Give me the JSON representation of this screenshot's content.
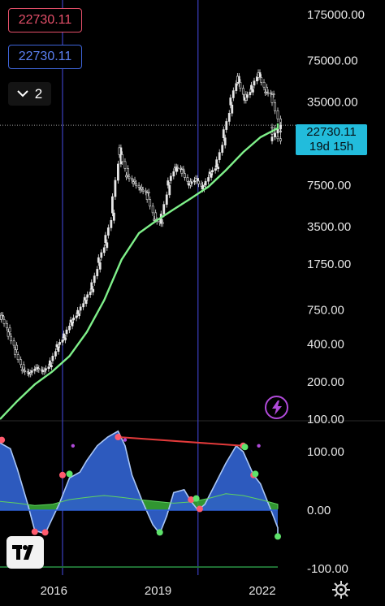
{
  "price_tags": {
    "red_value": "22730.11",
    "blue_value": "22730.11"
  },
  "collapse_button": {
    "count": "2",
    "icon": "chevron-down-icon"
  },
  "last_price": {
    "value": "22730.11",
    "countdown": "19d 15h"
  },
  "icons": {
    "flash": "lightning-icon",
    "logo": "tradingview-logo",
    "settings": "gear-icon"
  },
  "colors": {
    "background": "#000000",
    "candle": "#e6e6e6",
    "moving_average": "#7ff08a",
    "last_price_label": "#22bcdc",
    "osc_fill": "#2f5fc8",
    "osc_line": "#a9c6f6",
    "osc_signal": "#39b039",
    "divergence": "#e23a3a",
    "marker_red": "#ff5b6e",
    "marker_green": "#5ee36b",
    "marker_purple": "#b04ad9",
    "vertical_line": "#3b3fbf"
  },
  "chart_data": [
    {
      "type": "candlestick",
      "y_scale": "log",
      "ylim": [
        100,
        175000
      ],
      "y_ticks": [
        "175000.00",
        "75000.00",
        "35000.00",
        "7500.00",
        "3500.00",
        "1750.00",
        "750.00",
        "400.00",
        "200.00",
        "100.00"
      ],
      "x_ticks": [
        "2016",
        "2019",
        "2022"
      ],
      "xlim": [
        2014.5,
        2023.9
      ],
      "last_price": 22730.11,
      "vertical_lines_x": [
        2016.3,
        2020.2
      ],
      "series": [
        {
          "kind": "price",
          "x": [
            2014.5,
            2014.7,
            2014.9,
            2015.1,
            2015.3,
            2015.5,
            2015.7,
            2015.9,
            2016.1,
            2016.3,
            2016.5,
            2016.7,
            2016.9,
            2017.1,
            2017.3,
            2017.5,
            2017.7,
            2017.9,
            2018.1,
            2018.3,
            2018.5,
            2018.7,
            2018.9,
            2019.1,
            2019.3,
            2019.5,
            2019.7,
            2019.9,
            2020.1,
            2020.3,
            2020.5,
            2020.7,
            2020.9,
            2021.1,
            2021.3,
            2021.5,
            2021.7,
            2021.9,
            2022.1,
            2022.3,
            2022.5,
            2022.7,
            2022.9,
            2023.1
          ],
          "y": [
            680,
            500,
            360,
            250,
            230,
            260,
            240,
            270,
            380,
            450,
            600,
            700,
            900,
            1100,
            1800,
            2600,
            4500,
            15000,
            9000,
            8000,
            7000,
            6500,
            4000,
            3700,
            7500,
            10500,
            10000,
            7500,
            8500,
            7000,
            9300,
            10500,
            18000,
            33000,
            56000,
            36000,
            44000,
            60000,
            42000,
            40000,
            22000,
            20000,
            17000,
            22730
          ]
        },
        {
          "kind": "moving_average",
          "x": [
            2014.5,
            2015.0,
            2015.5,
            2016.0,
            2016.5,
            2017.0,
            2017.5,
            2018.0,
            2018.5,
            2019.0,
            2019.5,
            2020.0,
            2020.5,
            2021.0,
            2021.5,
            2022.0,
            2022.5,
            2023.0,
            2023.2
          ],
          "y": [
            100,
            140,
            190,
            240,
            320,
            500,
            900,
            1900,
            3100,
            3900,
            4800,
            5900,
            7300,
            9900,
            13800,
            18200,
            21500,
            23300,
            23500
          ]
        }
      ]
    },
    {
      "type": "area",
      "ylim": [
        -100,
        150
      ],
      "y_ticks": [
        "100.00",
        "0.00",
        "-100.00"
      ],
      "x_ticks": [
        "2016",
        "2019",
        "2022"
      ],
      "series": [
        {
          "kind": "oscillator",
          "x": [
            2014.5,
            2014.8,
            2015.0,
            2015.3,
            2015.5,
            2015.8,
            2016.0,
            2016.2,
            2016.5,
            2016.8,
            2017.0,
            2017.3,
            2017.6,
            2017.9,
            2018.1,
            2018.3,
            2018.6,
            2018.9,
            2019.1,
            2019.3,
            2019.5,
            2019.8,
            2020.0,
            2020.2,
            2020.4,
            2020.7,
            2021.0,
            2021.3,
            2021.5,
            2021.8,
            2022.0,
            2022.3,
            2022.5,
            2022.8,
            2023.1
          ],
          "y": [
            115,
            105,
            70,
            10,
            -35,
            -40,
            -15,
            10,
            55,
            65,
            85,
            110,
            125,
            135,
            110,
            60,
            15,
            -25,
            -40,
            -10,
            30,
            35,
            15,
            0,
            10,
            45,
            80,
            110,
            100,
            60,
            45,
            0,
            -30,
            -40,
            -45
          ]
        },
        {
          "kind": "signal",
          "x": [
            2014.5,
            2015.0,
            2015.5,
            2016.0,
            2016.5,
            2017.0,
            2017.5,
            2018.0,
            2018.5,
            2019.0,
            2019.5,
            2020.0,
            2020.5,
            2021.0,
            2021.5,
            2022.0,
            2022.5,
            2023.1
          ],
          "y": [
            15,
            12,
            8,
            10,
            18,
            22,
            25,
            22,
            18,
            15,
            12,
            14,
            20,
            28,
            25,
            18,
            10,
            2
          ]
        }
      ],
      "divergence": {
        "x": [
          2017.9,
          2021.5
        ],
        "y": [
          125,
          110
        ]
      },
      "markers": [
        {
          "x": 2014.55,
          "y": 120,
          "color": "red"
        },
        {
          "x": 2015.5,
          "y": -37,
          "color": "red"
        },
        {
          "x": 2015.8,
          "y": -38,
          "color": "red"
        },
        {
          "x": 2016.3,
          "y": 60,
          "color": "red"
        },
        {
          "x": 2016.5,
          "y": 62,
          "color": "green"
        },
        {
          "x": 2016.6,
          "y": 110,
          "color": "purple"
        },
        {
          "x": 2017.9,
          "y": 125,
          "color": "red"
        },
        {
          "x": 2018.1,
          "y": 120,
          "color": "purple"
        },
        {
          "x": 2019.1,
          "y": -38,
          "color": "green"
        },
        {
          "x": 2020.0,
          "y": 18,
          "color": "red"
        },
        {
          "x": 2020.15,
          "y": 20,
          "color": "green"
        },
        {
          "x": 2020.25,
          "y": 2,
          "color": "red"
        },
        {
          "x": 2021.5,
          "y": 110,
          "color": "red"
        },
        {
          "x": 2021.55,
          "y": 108,
          "color": "green"
        },
        {
          "x": 2021.8,
          "y": 60,
          "color": "red"
        },
        {
          "x": 2021.85,
          "y": 62,
          "color": "green"
        },
        {
          "x": 2021.95,
          "y": 110,
          "color": "purple"
        },
        {
          "x": 2023.1,
          "y": -45,
          "color": "green"
        }
      ]
    }
  ]
}
